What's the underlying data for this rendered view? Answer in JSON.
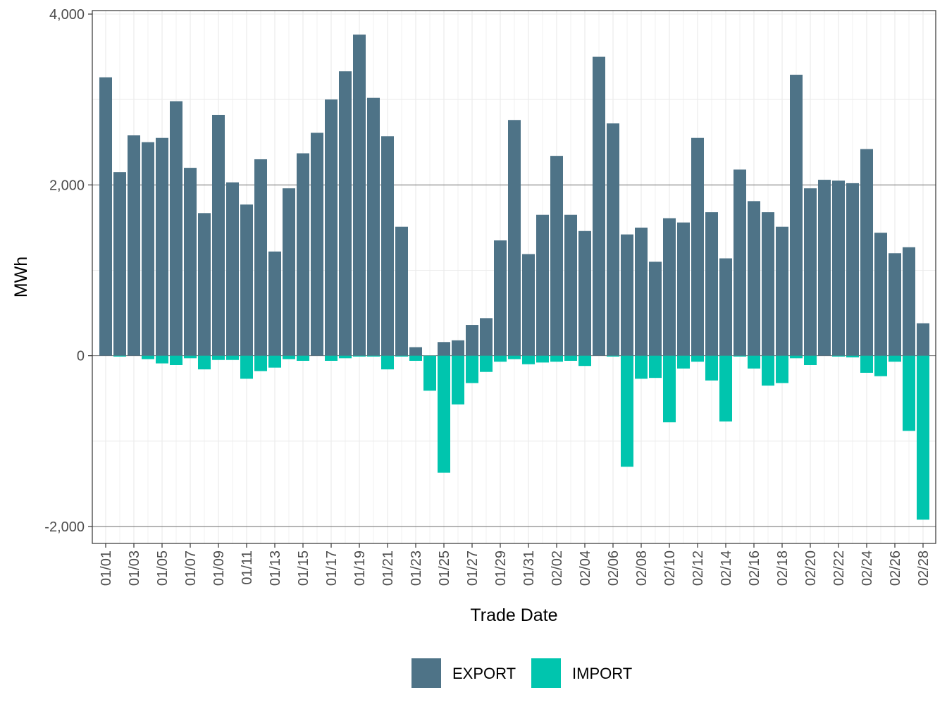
{
  "chart_data": {
    "type": "bar",
    "stacked": true,
    "xlabel": "Trade Date",
    "ylabel": "MWh",
    "ylim": [
      -2250,
      4000
    ],
    "yticks": [
      {
        "value": 4000,
        "label": "4,000"
      },
      {
        "value": 2000,
        "label": "2,000"
      },
      {
        "value": 0,
        "label": "0"
      },
      {
        "value": -2000,
        "label": "-2,000"
      }
    ],
    "categories": [
      "01/01",
      "01/02",
      "01/03",
      "01/04",
      "01/05",
      "01/06",
      "01/07",
      "01/08",
      "01/09",
      "01/10",
      "01/11",
      "01/12",
      "01/13",
      "01/14",
      "01/15",
      "01/16",
      "01/17",
      "01/18",
      "01/19",
      "01/20",
      "01/21",
      "01/22",
      "01/23",
      "01/24",
      "01/25",
      "01/26",
      "01/27",
      "01/28",
      "01/29",
      "01/30",
      "01/31",
      "02/01",
      "02/02",
      "02/03",
      "02/04",
      "02/05",
      "02/06",
      "02/07",
      "02/08",
      "02/09",
      "02/10",
      "02/11",
      "02/12",
      "02/13",
      "02/14",
      "02/15",
      "02/16",
      "02/17",
      "02/18",
      "02/19",
      "02/20",
      "02/21",
      "02/22",
      "02/23",
      "02/24",
      "02/25",
      "02/26",
      "02/27",
      "02/28"
    ],
    "tick_labels": [
      "01/01",
      "01/03",
      "01/05",
      "01/07",
      "01/09",
      "01/11",
      "01/13",
      "01/15",
      "01/17",
      "01/19",
      "01/21",
      "01/23",
      "01/25",
      "01/27",
      "01/29",
      "01/31",
      "02/02",
      "02/04",
      "02/06",
      "02/08",
      "02/10",
      "02/12",
      "02/14",
      "02/16",
      "02/18",
      "02/20",
      "02/22",
      "02/24",
      "02/26",
      "02/28"
    ],
    "series": [
      {
        "name": "EXPORT",
        "color": "#4E7387",
        "values": [
          3260,
          2150,
          2580,
          2500,
          2550,
          2980,
          2200,
          1670,
          2820,
          2030,
          1770,
          2300,
          1220,
          1960,
          2370,
          2610,
          3000,
          3330,
          3760,
          3020,
          2570,
          1510,
          100,
          0,
          160,
          180,
          360,
          440,
          1350,
          2760,
          1190,
          1650,
          2340,
          1650,
          1460,
          3500,
          2720,
          1420,
          1500,
          1100,
          1610,
          1560,
          2550,
          1680,
          1140,
          2180,
          1810,
          1680,
          1510,
          3290,
          1960,
          2060,
          2050,
          2020,
          2420,
          1440,
          1200,
          1270,
          380
        ]
      },
      {
        "name": "IMPORT",
        "color": "#00C5AE",
        "values": [
          0,
          -10,
          0,
          -40,
          -90,
          -110,
          -30,
          -160,
          -50,
          -50,
          -270,
          -180,
          -140,
          -40,
          -60,
          0,
          -60,
          -30,
          -10,
          -10,
          -160,
          -10,
          -60,
          -410,
          -1370,
          -570,
          -320,
          -190,
          -70,
          -40,
          -100,
          -80,
          -70,
          -60,
          -120,
          0,
          -10,
          -1300,
          -270,
          -260,
          -780,
          -150,
          -70,
          -290,
          -770,
          -10,
          -150,
          -350,
          -320,
          -30,
          -110,
          0,
          -10,
          -20,
          -200,
          -240,
          -70,
          -880,
          -1920
        ]
      }
    ],
    "legend_position": "bottom",
    "grid": true
  }
}
